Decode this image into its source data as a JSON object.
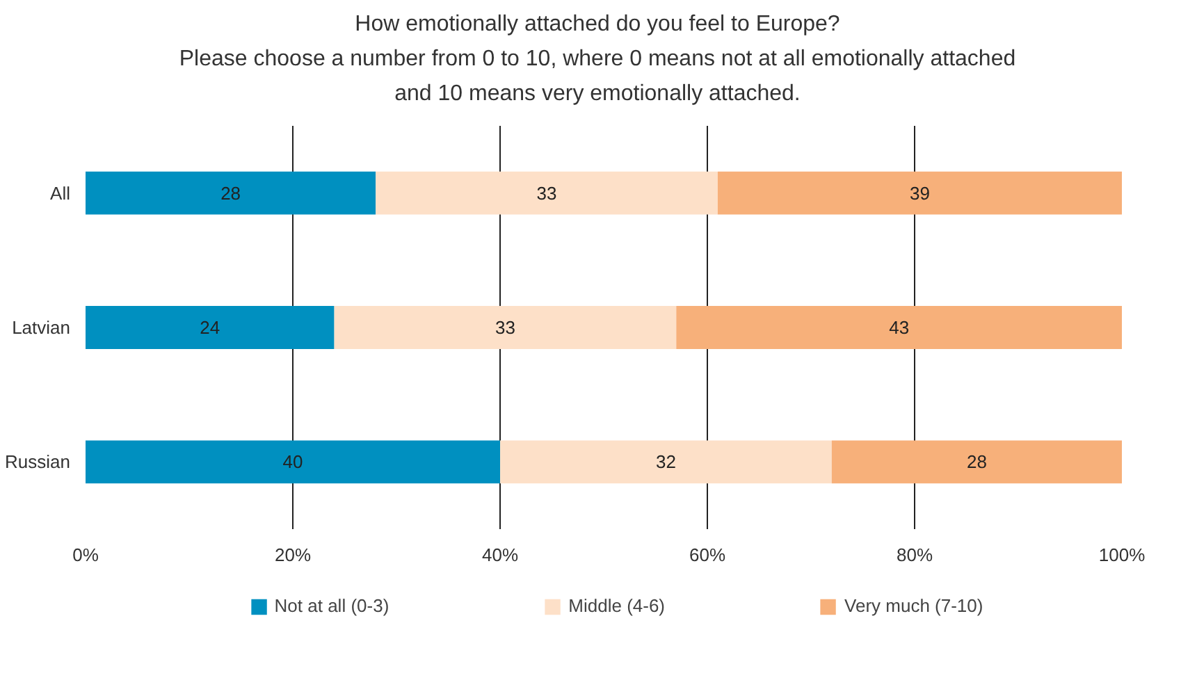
{
  "chart_data": {
    "type": "bar",
    "orientation": "horizontal",
    "stacked": true,
    "title": "How emotionally attached do you feel to Europe?\nPlease choose a number from 0 to 10, where 0 means not at all emotionally attached\nand 10 means very emotionally attached.",
    "categories": [
      "All",
      "Latvian",
      "Russian"
    ],
    "series": [
      {
        "name": "Not at all (0-3)",
        "color": "#0090c0",
        "values": [
          28,
          24,
          40
        ]
      },
      {
        "name": "Middle (4-6)",
        "color": "#fde0c8",
        "values": [
          33,
          33,
          32
        ]
      },
      {
        "name": "Very much (7-10)",
        "color": "#f7b07a",
        "values": [
          39,
          43,
          28
        ]
      }
    ],
    "xlim": [
      0,
      100
    ],
    "xticks": [
      {
        "value": 0,
        "label": "0%"
      },
      {
        "value": 20,
        "label": "20%"
      },
      {
        "value": 40,
        "label": "40%"
      },
      {
        "value": 60,
        "label": "60%"
      },
      {
        "value": 80,
        "label": "80%"
      },
      {
        "value": 100,
        "label": "100%"
      }
    ],
    "grid": "x",
    "data_labels": true,
    "legend": "bottom"
  }
}
